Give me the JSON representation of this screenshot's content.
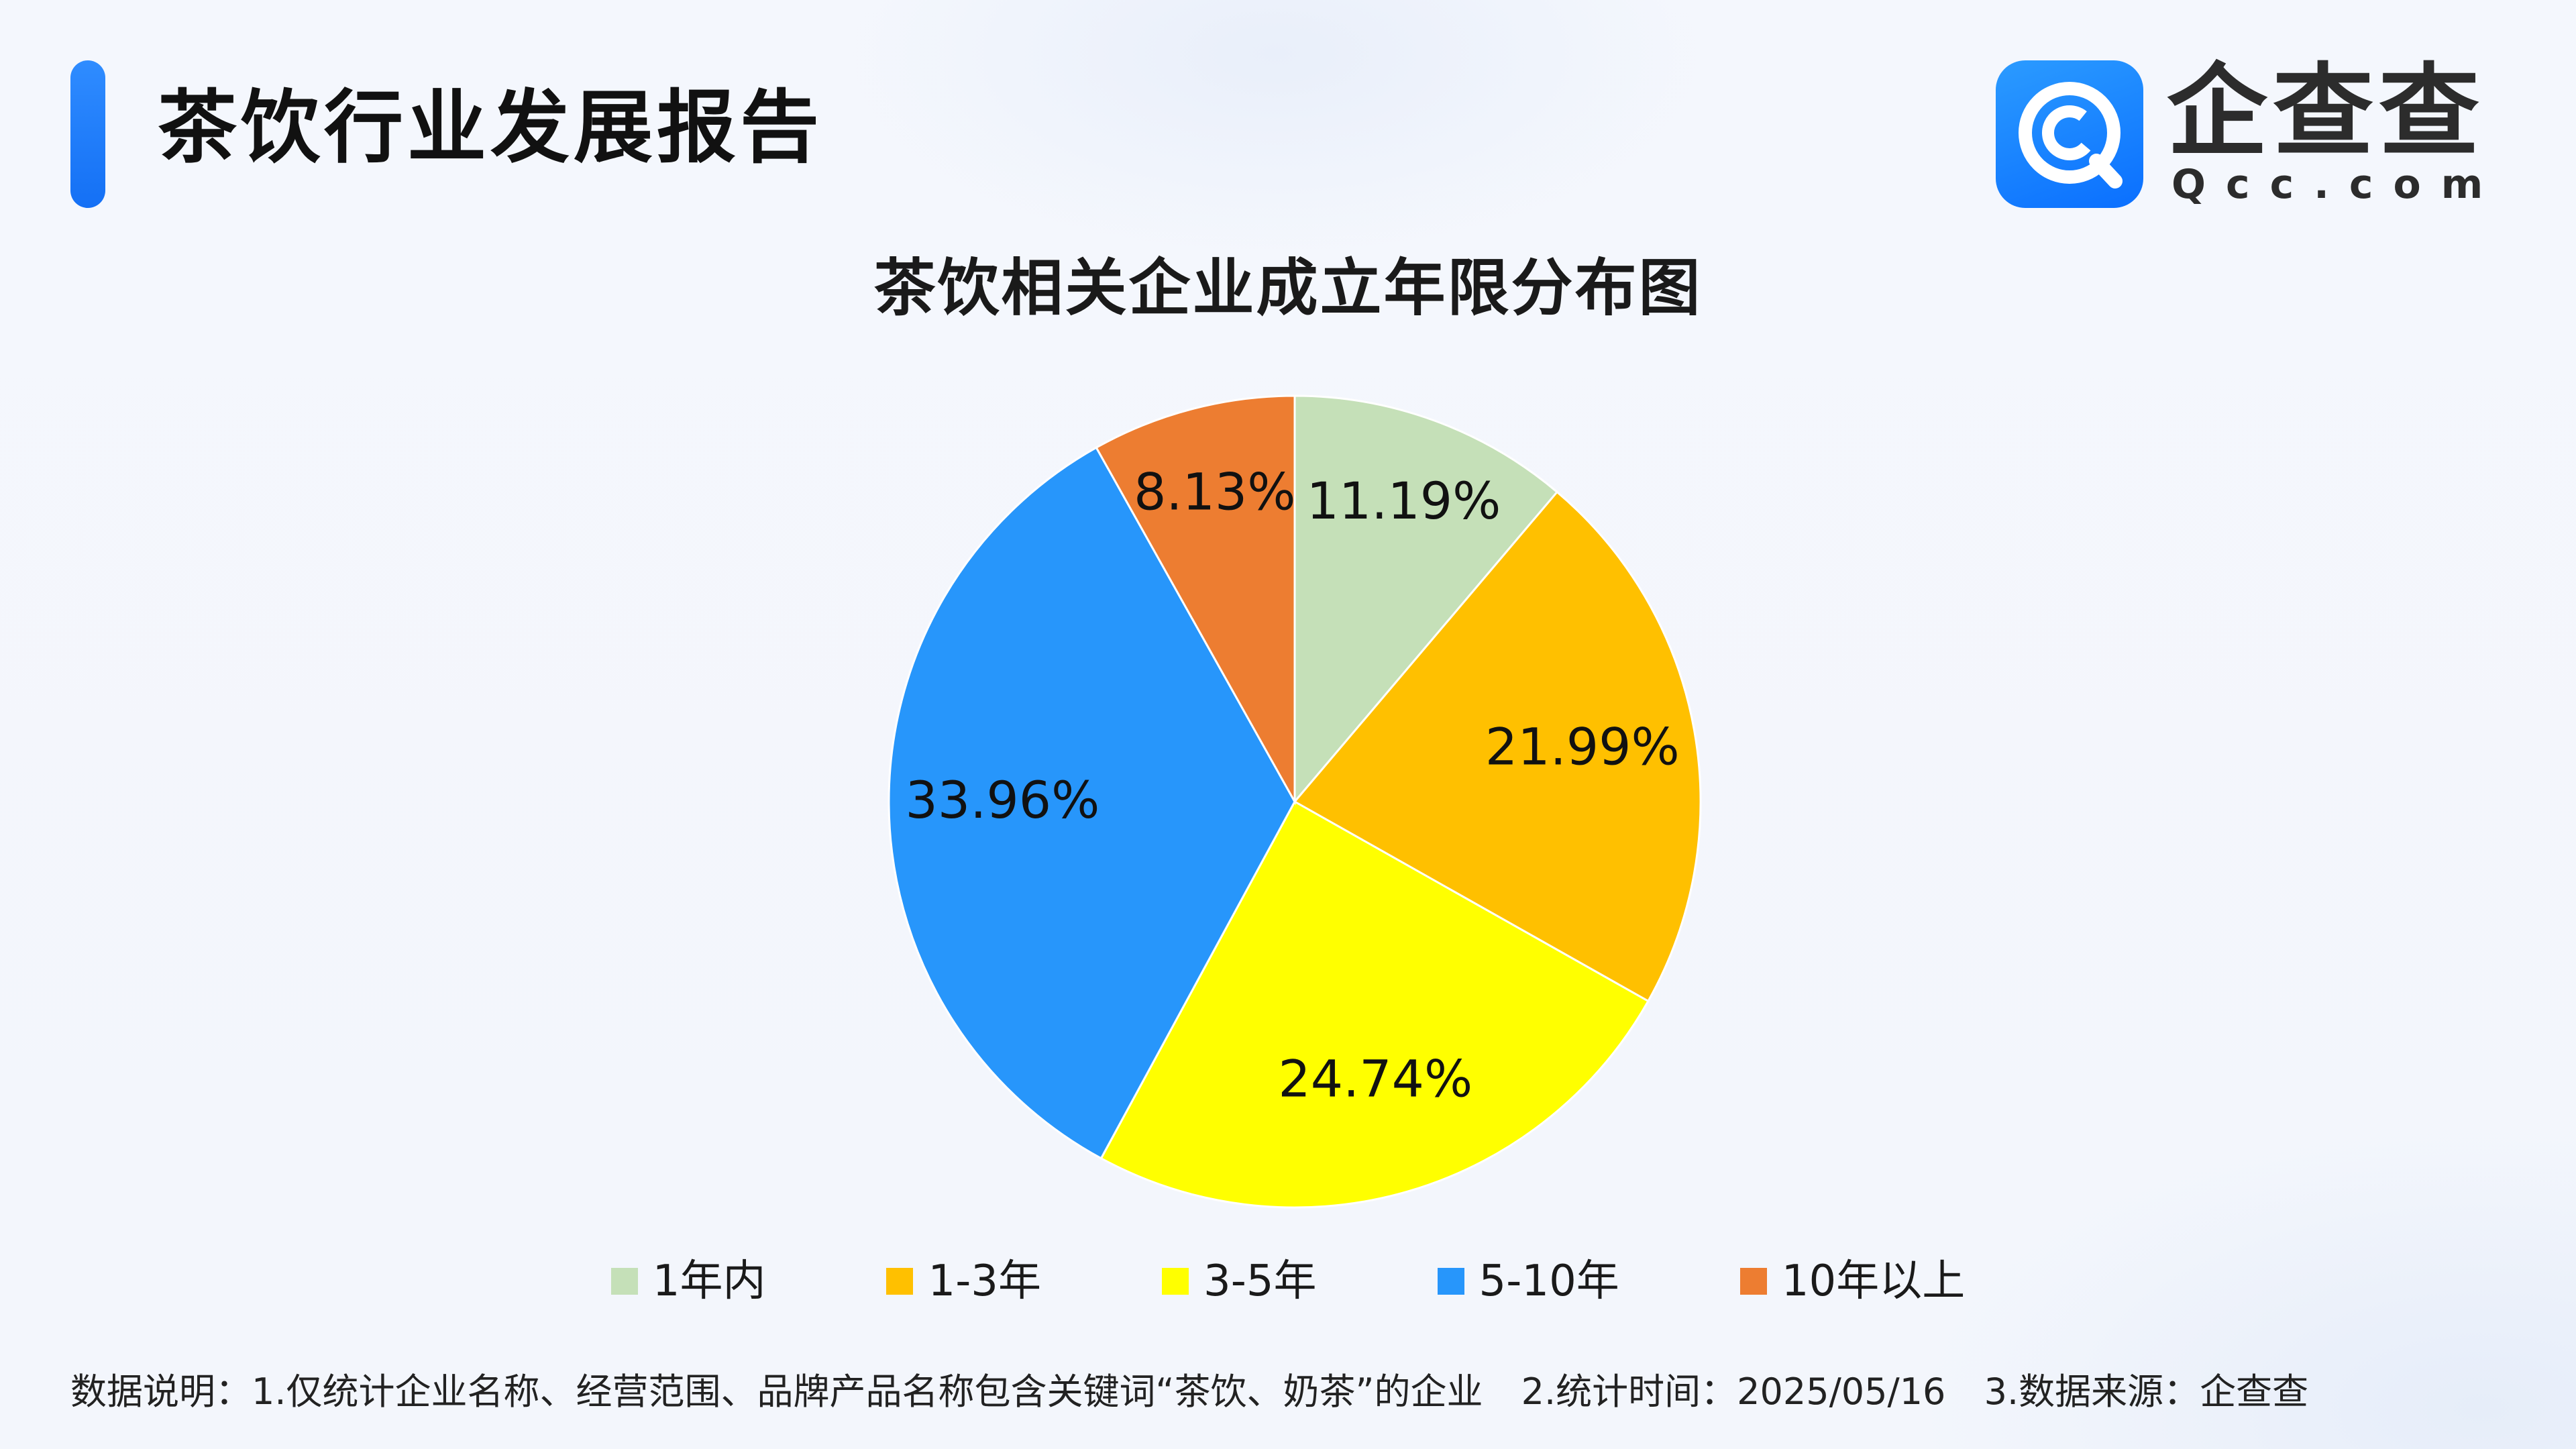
{
  "header": {
    "report_title": "茶饮行业发展报告"
  },
  "logo": {
    "name": "企查查",
    "domain": "Qcc.com",
    "icon": "qcc-logo-icon",
    "brand_color": "#1677ff"
  },
  "chart_data": {
    "type": "pie",
    "title": "茶饮相关企业成立年限分布图",
    "categories": [
      "1年内",
      "1-3年",
      "3-5年",
      "5-10年",
      "10年以上"
    ],
    "values": [
      11.19,
      21.99,
      24.74,
      33.96,
      8.13
    ],
    "value_labels": [
      "11.19%",
      "21.99%",
      "24.74%",
      "33.96%",
      "8.13%"
    ],
    "colors": [
      "#c5e0b8",
      "#ffc000",
      "#ffff00",
      "#2796fb",
      "#ed7d31"
    ],
    "start_angle": "12 o'clock",
    "direction": "clockwise",
    "legend_position": "bottom"
  },
  "footnote": {
    "note1": "数据说明：1.仅统计企业名称、经营范围、品牌产品名称包含关键词“茶饮、奶茶”的企业",
    "note2": "2.统计时间：2025/05/16",
    "note3": "3.数据来源：企查查"
  }
}
